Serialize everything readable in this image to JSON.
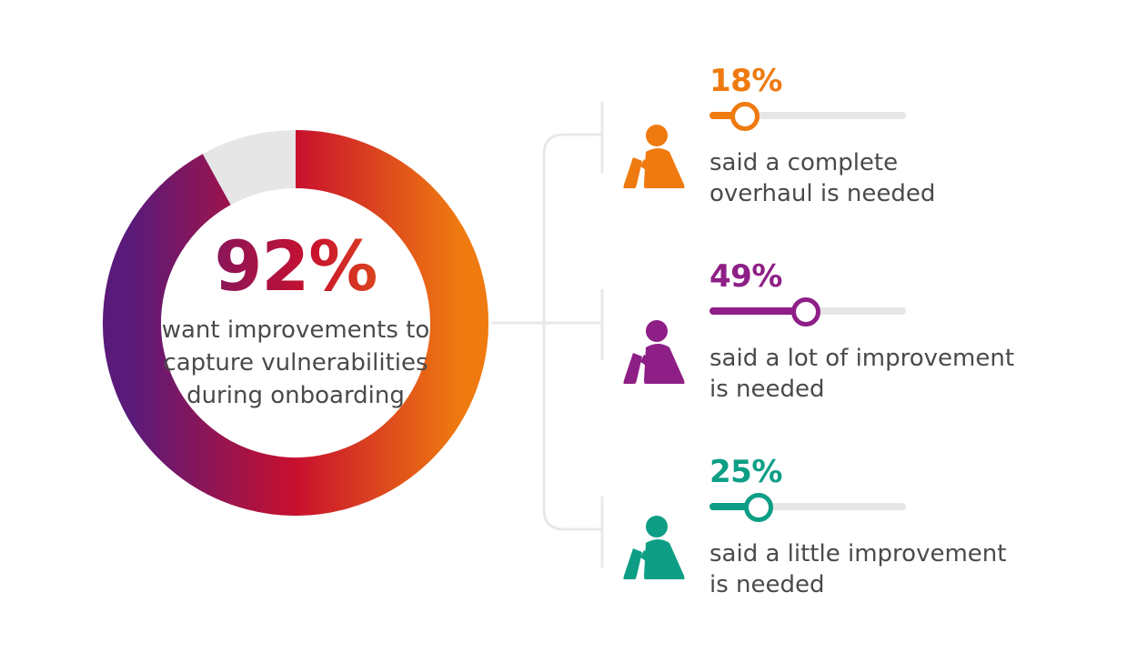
{
  "colors": {
    "purple_dark": "#5a1a7a",
    "red": "#c8102e",
    "orange": "#ef7a0f",
    "purple": "#8e1f86",
    "teal": "#0e9e86",
    "track": "#e6e6e6",
    "text": "#4a4a4a"
  },
  "headline": {
    "value": "92%",
    "caption_lines": [
      "want improvements to",
      "capture vulnerabilities",
      "during onboarding"
    ]
  },
  "chart_data": {
    "type": "pie",
    "variant": "donut",
    "values": [
      92,
      8
    ],
    "colors": [
      "gradient",
      "#e6e6e6"
    ]
  },
  "stats": [
    {
      "value_label": "18%",
      "value": 18,
      "color": "#ef7a0f",
      "icon": "sitting-person-icon",
      "caption_lines": [
        "said a complete",
        "overhaul is needed"
      ]
    },
    {
      "value_label": "49%",
      "value": 49,
      "color": "#8e1f86",
      "icon": "sitting-person-icon",
      "caption_lines": [
        "said a lot of improvement",
        "is needed"
      ]
    },
    {
      "value_label": "25%",
      "value": 25,
      "color": "#0e9e86",
      "icon": "sitting-person-icon",
      "caption_lines": [
        "said a little improvement",
        "is needed"
      ]
    }
  ]
}
